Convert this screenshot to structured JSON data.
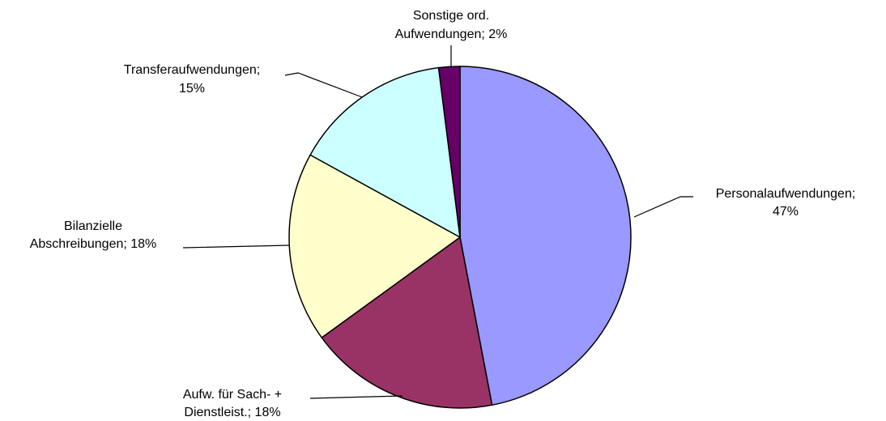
{
  "chart_data": {
    "type": "pie",
    "values": [
      47,
      18,
      18,
      15,
      2
    ],
    "value_labels": [
      [
        "Personalaufwendungen;",
        "47%"
      ],
      [
        "Aufw. für Sach- +",
        "Dienstleist.; 18%"
      ],
      [
        "Bilanzielle",
        "Abschreibungen; 18%"
      ],
      [
        "Transferaufwendungen;",
        "15%"
      ],
      [
        "Sonstige ord.",
        "Aufwendungen; 2%"
      ]
    ],
    "colors": [
      "#9999ff",
      "#993366",
      "#ffffcc",
      "#ccffff",
      "#660066"
    ]
  }
}
